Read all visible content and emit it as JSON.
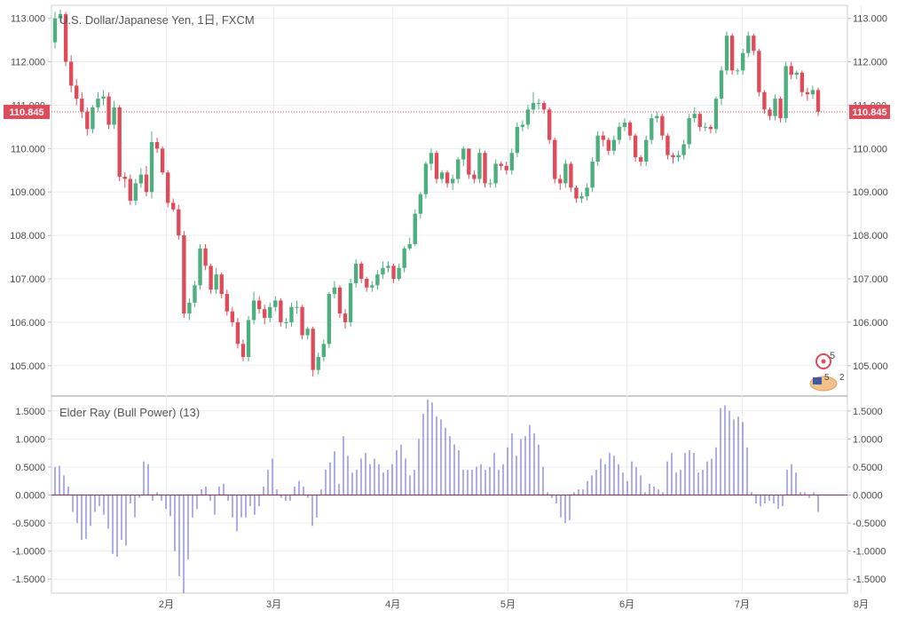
{
  "chart_data": [
    {
      "type": "candlestick",
      "title": "U.S. Dollar/Japanese Yen, 1日, FXCM",
      "last_price": "110.845",
      "last_price_value": 110.845,
      "ylim": [
        104.3,
        113.3
      ],
      "y_ticks": [
        "113.000",
        "112.000",
        "111.000",
        "110.000",
        "109.000",
        "108.000",
        "107.000",
        "106.000",
        "105.000"
      ],
      "y_tick_values": [
        113,
        112,
        111,
        110,
        109,
        108,
        107,
        106,
        105
      ],
      "x_ticks": [
        "2月",
        "3月",
        "4月",
        "5月",
        "6月",
        "7月",
        "8月"
      ],
      "x_tick_dates": [
        "2017-02-01",
        "2017-03-01",
        "2017-04-01",
        "2017-05-01",
        "2017-06-01",
        "2017-07-01",
        "2017-08-01"
      ],
      "grid": true,
      "colors": {
        "up": "#4caf7d",
        "down": "#e04b5a",
        "price_line": "#e04b5a"
      },
      "closes": [
        113.0,
        113.1,
        112.0,
        111.45,
        111.15,
        110.85,
        110.45,
        110.95,
        111.15,
        111.2,
        110.55,
        110.95,
        109.35,
        109.3,
        108.8,
        109.2,
        109.4,
        109.0,
        110.15,
        110.0,
        109.45,
        108.75,
        108.6,
        108.0,
        106.2,
        106.45,
        106.85,
        107.7,
        107.3,
        106.75,
        107.1,
        106.65,
        106.25,
        106.0,
        105.5,
        105.2,
        106.05,
        106.5,
        106.3,
        106.1,
        106.35,
        106.5,
        106.0,
        106.0,
        106.35,
        106.35,
        105.7,
        105.85,
        104.9,
        105.2,
        105.5,
        106.65,
        106.8,
        106.2,
        106.0,
        106.9,
        107.35,
        107.0,
        106.8,
        106.85,
        107.1,
        107.25,
        107.3,
        107.0,
        107.25,
        107.7,
        107.8,
        108.5,
        108.95,
        109.65,
        109.9,
        109.3,
        109.45,
        109.2,
        109.3,
        109.75,
        110.0,
        109.4,
        109.3,
        109.9,
        109.2,
        109.2,
        109.65,
        109.6,
        109.5,
        109.9,
        110.5,
        110.55,
        110.9,
        111.05,
        111.05,
        110.9,
        110.2,
        109.3,
        109.2,
        109.65,
        109.1,
        108.85,
        108.9,
        109.1,
        109.7,
        110.3,
        110.2,
        109.95,
        110.2,
        110.5,
        110.6,
        110.3,
        109.8,
        109.7,
        110.2,
        110.7,
        110.75,
        110.3,
        109.85,
        109.8,
        109.85,
        110.1,
        110.7,
        110.8,
        110.5,
        110.5,
        110.45,
        111.15,
        111.8,
        112.6,
        111.8,
        111.8,
        112.2,
        112.6,
        112.25,
        111.3,
        110.9,
        110.75,
        111.15,
        110.7,
        111.9,
        111.7,
        111.75,
        111.3,
        111.25,
        111.35,
        110.85
      ],
      "opens": [
        112.45,
        113.0,
        113.1,
        112.0,
        111.45,
        111.15,
        110.85,
        110.45,
        110.95,
        111.15,
        111.2,
        110.55,
        110.95,
        109.35,
        109.3,
        108.8,
        109.2,
        109.4,
        109.0,
        110.15,
        110.0,
        109.45,
        108.75,
        108.6,
        108.0,
        106.2,
        106.45,
        106.85,
        107.7,
        107.3,
        106.75,
        107.1,
        106.65,
        106.25,
        106.0,
        105.5,
        105.2,
        106.05,
        106.5,
        106.3,
        106.1,
        106.35,
        106.5,
        106.0,
        106.0,
        106.35,
        106.35,
        105.7,
        105.85,
        104.9,
        105.2,
        105.5,
        106.65,
        106.8,
        106.2,
        106.0,
        106.9,
        107.35,
        107.0,
        106.8,
        106.85,
        107.1,
        107.25,
        107.3,
        107.0,
        107.25,
        107.7,
        107.8,
        108.5,
        108.95,
        109.65,
        109.9,
        109.3,
        109.45,
        109.2,
        109.3,
        109.75,
        110.0,
        109.4,
        109.3,
        109.9,
        109.2,
        109.2,
        109.65,
        109.6,
        109.5,
        109.9,
        110.5,
        110.55,
        110.9,
        111.05,
        111.05,
        110.9,
        110.2,
        109.3,
        109.2,
        109.65,
        109.1,
        108.85,
        108.9,
        109.1,
        109.7,
        110.3,
        110.2,
        109.95,
        110.2,
        110.5,
        110.6,
        110.3,
        109.8,
        109.7,
        110.2,
        110.7,
        110.75,
        110.3,
        109.85,
        109.8,
        109.85,
        110.1,
        110.7,
        110.8,
        110.5,
        110.5,
        110.45,
        111.15,
        111.8,
        112.6,
        111.8,
        111.8,
        112.2,
        112.6,
        112.25,
        111.3,
        110.9,
        110.75,
        111.15,
        110.7,
        111.9,
        111.7,
        111.75,
        111.3,
        111.25,
        111.35
      ],
      "highs": [
        113.15,
        113.2,
        113.15,
        112.15,
        111.6,
        111.3,
        110.95,
        111.0,
        111.3,
        111.35,
        111.3,
        111.1,
        111.0,
        109.45,
        109.4,
        109.3,
        109.55,
        109.6,
        110.4,
        110.25,
        110.05,
        109.5,
        108.85,
        108.7,
        108.1,
        106.55,
        106.95,
        107.8,
        107.8,
        107.35,
        107.25,
        107.15,
        106.75,
        106.35,
        106.1,
        105.6,
        106.15,
        106.7,
        106.6,
        106.4,
        106.45,
        106.6,
        106.55,
        106.1,
        106.45,
        106.5,
        106.4,
        105.9,
        105.9,
        105.3,
        105.6,
        106.7,
        106.95,
        106.85,
        106.3,
        107.0,
        107.45,
        107.4,
        107.05,
        106.95,
        107.2,
        107.4,
        107.4,
        107.35,
        107.35,
        107.75,
        107.95,
        108.6,
        109.0,
        109.7,
        110.0,
        109.95,
        109.5,
        109.5,
        109.4,
        109.8,
        110.05,
        110.0,
        109.5,
        110.0,
        109.95,
        109.3,
        109.75,
        109.7,
        109.7,
        110.0,
        110.6,
        110.65,
        111.0,
        111.3,
        111.15,
        111.1,
        110.95,
        110.25,
        109.4,
        109.75,
        109.7,
        109.15,
        109.0,
        109.2,
        109.8,
        110.4,
        110.4,
        110.25,
        110.3,
        110.6,
        110.7,
        110.65,
        110.35,
        109.85,
        110.3,
        110.8,
        110.85,
        110.8,
        110.35,
        109.9,
        109.95,
        110.2,
        110.8,
        110.95,
        110.85,
        110.6,
        110.55,
        111.2,
        111.9,
        112.7,
        112.65,
        111.85,
        112.3,
        112.7,
        112.65,
        112.3,
        111.35,
        110.95,
        111.25,
        111.2,
        112.0,
        112.0,
        111.8,
        111.8,
        111.4,
        111.45,
        111.4
      ],
      "lows": [
        112.3,
        112.9,
        111.9,
        111.3,
        111.0,
        110.7,
        110.3,
        110.35,
        110.85,
        111.0,
        110.45,
        110.45,
        109.25,
        109.1,
        108.7,
        108.7,
        109.1,
        108.9,
        108.85,
        109.9,
        109.4,
        108.65,
        108.55,
        107.9,
        106.1,
        106.05,
        106.35,
        106.75,
        107.2,
        106.65,
        106.65,
        106.55,
        106.15,
        105.9,
        105.4,
        105.1,
        105.1,
        105.95,
        106.2,
        105.95,
        106.0,
        106.25,
        105.9,
        105.85,
        105.9,
        106.2,
        105.6,
        105.6,
        104.75,
        104.8,
        105.1,
        105.4,
        106.55,
        106.1,
        105.85,
        105.9,
        106.8,
        106.9,
        106.7,
        106.7,
        106.75,
        107.0,
        107.15,
        106.9,
        106.95,
        107.15,
        107.65,
        107.75,
        108.4,
        108.85,
        109.5,
        109.2,
        109.2,
        109.1,
        109.05,
        109.2,
        109.6,
        109.3,
        109.2,
        109.2,
        109.1,
        109.1,
        109.1,
        109.5,
        109.4,
        109.4,
        109.8,
        110.4,
        110.45,
        110.8,
        110.9,
        110.8,
        110.1,
        109.2,
        109.05,
        109.1,
        109.0,
        108.75,
        108.75,
        108.8,
        109.0,
        109.6,
        110.05,
        109.85,
        109.85,
        110.1,
        110.4,
        110.2,
        109.7,
        109.6,
        109.6,
        110.1,
        110.6,
        110.2,
        109.75,
        109.65,
        109.7,
        109.75,
        110.0,
        110.6,
        110.4,
        110.4,
        110.35,
        110.35,
        111.0,
        111.7,
        111.7,
        111.7,
        111.7,
        112.1,
        112.15,
        111.2,
        110.8,
        110.65,
        110.65,
        110.6,
        110.6,
        111.6,
        111.6,
        111.2,
        111.1,
        111.15,
        110.75
      ]
    },
    {
      "type": "bar",
      "title": "Elder Ray (Bull Power) (13)",
      "ylim": [
        -1.75,
        1.75
      ],
      "y_ticks": [
        "1.5000",
        "1.0000",
        "0.5000",
        "0.0000",
        "-0.5000",
        "-1.0000",
        "-1.5000"
      ],
      "y_tick_values": [
        1.5,
        1.0,
        0.5,
        0.0,
        -0.5,
        -1.0,
        -1.5
      ],
      "colors": {
        "bar": "#5b5bd6",
        "zero_line": "#8b2a6e"
      },
      "values": [
        0.5,
        0.52,
        0.35,
        0.15,
        -0.3,
        -0.5,
        -0.8,
        -0.78,
        -0.55,
        -0.3,
        -0.2,
        -0.35,
        -0.6,
        -1.05,
        -1.1,
        -0.8,
        -0.9,
        -0.15,
        -0.4,
        -0.05,
        0.6,
        0.55,
        -0.1,
        0.05,
        -0.1,
        -0.25,
        -0.38,
        -1.0,
        -1.45,
        -1.75,
        -1.15,
        -0.4,
        -0.25,
        0.1,
        0.15,
        -0.1,
        -0.35,
        0.15,
        0.2,
        -0.1,
        -0.4,
        -0.65,
        -0.4,
        -0.4,
        -0.2,
        -0.35,
        -0.2,
        0.15,
        0.45,
        0.65,
        0.1,
        -0.05,
        -0.1,
        -0.1,
        0.15,
        0.25,
        0.15,
        -0.05,
        -0.55,
        -0.4,
        0.1,
        0.45,
        0.58,
        0.78,
        0.2,
        1.05,
        0.7,
        0.4,
        0.45,
        0.65,
        0.75,
        0.55,
        0.65,
        0.55,
        0.4,
        0.45,
        0.55,
        0.8,
        0.9,
        0.65,
        0.35,
        0.45,
        1.0,
        1.45,
        1.7,
        1.65,
        1.4,
        1.35,
        1.2,
        1.05,
        0.9,
        0.8,
        0.45,
        0.45,
        0.45,
        0.5,
        0.55,
        0.45,
        0.5,
        0.75,
        0.45,
        0.55,
        0.85,
        1.1,
        0.7,
        1.0,
        1.05,
        1.25,
        1.1,
        0.9,
        0.5,
        0.05,
        -0.05,
        -0.15,
        -0.4,
        -0.5,
        -0.45,
        0.05,
        0.1,
        0.1,
        0.25,
        0.35,
        0.45,
        0.65,
        0.55,
        0.75,
        0.7,
        0.55,
        0.4,
        0.25,
        0.6,
        0.5,
        0.35,
        0.05,
        0.2,
        0.15,
        0.1,
        0.05,
        0.6,
        0.75,
        0.4,
        0.45,
        0.75,
        0.8,
        0.75,
        0.4,
        0.45,
        0.6,
        0.65,
        0.85,
        1.55,
        1.6,
        1.5,
        1.35,
        1.4,
        1.3,
        0.85,
        0.05,
        -0.15,
        -0.2,
        -0.15,
        -0.1,
        -0.15,
        -0.25,
        -0.2,
        0.45,
        0.55,
        0.4,
        0.05,
        0.05,
        -0.05,
        0.05,
        -0.3
      ]
    }
  ],
  "badges": {
    "indicator_count": "5",
    "flag_count": "5",
    "flag_extra": "2"
  }
}
